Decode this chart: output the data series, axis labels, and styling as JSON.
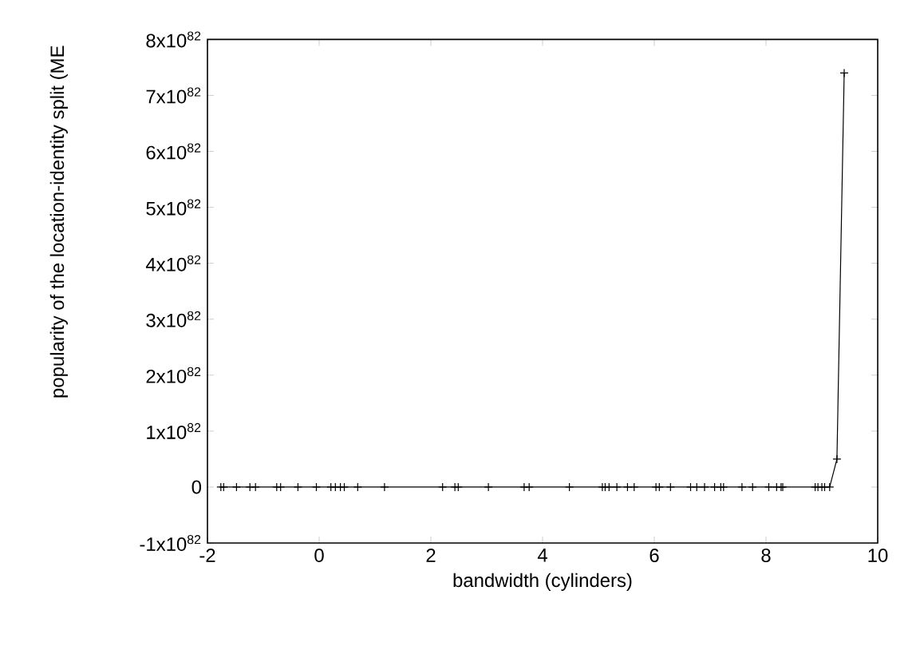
{
  "chart_data": {
    "type": "line",
    "xlabel": "bandwidth (cylinders)",
    "ylabel": "popularity of the location-identity split  (ME",
    "x": [
      -1.76,
      -1.71,
      -1.48,
      -1.24,
      -1.14,
      -0.76,
      -0.69,
      -0.38,
      -0.05,
      0.21,
      0.29,
      0.38,
      0.45,
      0.69,
      1.17,
      2.21,
      2.43,
      2.49,
      3.03,
      3.67,
      3.76,
      4.48,
      5.07,
      5.12,
      5.19,
      5.33,
      5.52,
      5.64,
      6.03,
      6.09,
      6.29,
      6.65,
      6.76,
      6.9,
      7.08,
      7.19,
      7.24,
      7.57,
      7.76,
      8.05,
      8.19,
      8.27,
      8.3,
      8.88,
      8.93,
      9.0,
      9.05,
      9.14,
      9.27,
      9.4
    ],
    "series": [
      {
        "color": "#000000",
        "values": [
          0,
          0,
          0,
          0,
          0,
          0,
          0,
          0,
          0,
          0,
          0,
          0,
          0,
          0,
          0,
          0,
          0,
          0,
          0,
          0,
          0,
          0,
          0,
          0,
          0,
          0,
          0,
          0,
          0,
          0,
          0,
          0,
          0,
          0,
          0,
          0,
          0,
          0,
          0,
          0,
          0,
          0,
          0,
          0,
          0,
          0,
          0,
          0,
          5e+81,
          7.4e+82
        ]
      }
    ],
    "marker": "cross",
    "line_style": "solid",
    "xlim": [
      -2,
      10
    ],
    "xticks": [
      -2,
      0,
      2,
      4,
      6,
      8,
      10
    ],
    "ylim": [
      -1e+82,
      8e+82
    ],
    "yticks": [
      {
        "value": -1e+82,
        "label": "-1x10$^{82}$"
      },
      {
        "value": 0,
        "label": "0"
      },
      {
        "value": 1e+82,
        "label": "1x10$^{82}$"
      },
      {
        "value": 2e+82,
        "label": "2x10$^{82}$"
      },
      {
        "value": 3e+82,
        "label": "3x10$^{82}$"
      },
      {
        "value": 4e+82,
        "label": "4x10$^{82}$"
      },
      {
        "value": 5e+82,
        "label": "5x10$^{82}$"
      },
      {
        "value": 6e+82,
        "label": "6x10$^{82}$"
      },
      {
        "value": 7e+82,
        "label": "7x10$^{82}$"
      },
      {
        "value": 8e+82,
        "label": "8x10$^{82}$"
      }
    ]
  }
}
